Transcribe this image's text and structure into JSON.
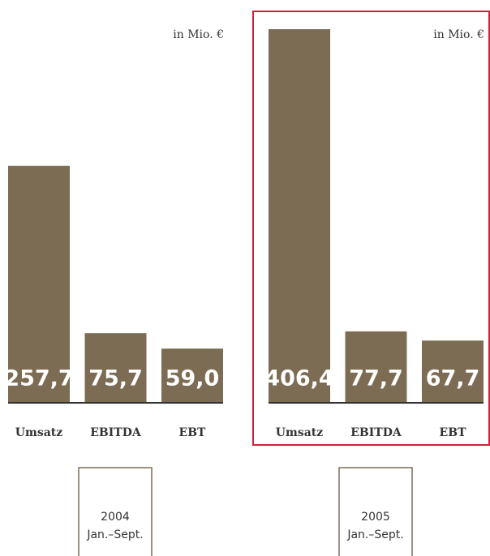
{
  "chart_data": [
    {
      "type": "bar",
      "annotation": "in Mio. €",
      "categories": [
        "Umsatz",
        "EBITDA",
        "EBT"
      ],
      "values": [
        257.7,
        75.7,
        59.0
      ],
      "value_labels": [
        "257,7",
        "75,7",
        "59,0"
      ],
      "color": "#7d6c54",
      "year": "2004",
      "period": "Jan.–Sept.",
      "highlight": false
    },
    {
      "type": "bar",
      "annotation": "in Mio. €",
      "categories": [
        "Umsatz",
        "EBITDA",
        "EBT"
      ],
      "values": [
        406.4,
        77.7,
        67.7
      ],
      "value_labels": [
        "406,4",
        "77,7",
        "67,7"
      ],
      "color": "#7d6c54",
      "year": "2005",
      "period": "Jan.–Sept.",
      "highlight": true
    }
  ]
}
